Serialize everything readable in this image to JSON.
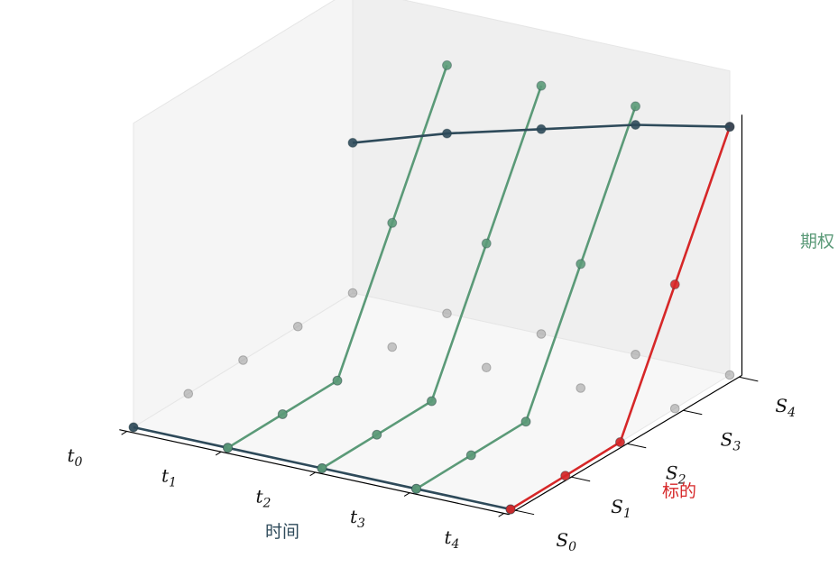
{
  "chart_data": {
    "type": "line3d",
    "title": "",
    "axes": {
      "x": {
        "label": "时间",
        "label_color": "#2e4a5a",
        "ticks": [
          {
            "base": "t",
            "sub": "0"
          },
          {
            "base": "t",
            "sub": "1"
          },
          {
            "base": "t",
            "sub": "2"
          },
          {
            "base": "t",
            "sub": "3"
          },
          {
            "base": "t",
            "sub": "4"
          }
        ]
      },
      "y": {
        "label": "标的",
        "label_color": "#d62728",
        "ticks": [
          {
            "base": "S",
            "sub": "0"
          },
          {
            "base": "S",
            "sub": "1"
          },
          {
            "base": "S",
            "sub": "2"
          },
          {
            "base": "S",
            "sub": "3"
          },
          {
            "base": "S",
            "sub": "4"
          }
        ]
      },
      "z": {
        "label": "期权",
        "label_color": "#5b9a78"
      }
    },
    "grid_points": {
      "t": [
        0,
        1,
        2,
        3,
        4
      ],
      "S": [
        0,
        1,
        2,
        3,
        4
      ],
      "z": 0,
      "color": "#999999"
    },
    "series": [
      {
        "kind": "time-path-at-S0",
        "color": "#2e4a5a",
        "points": [
          [
            0,
            0,
            0
          ],
          [
            1,
            0,
            0
          ],
          [
            2,
            0,
            0
          ],
          [
            3,
            0,
            0
          ],
          [
            4,
            0,
            0
          ]
        ]
      },
      {
        "kind": "underlying-path-at-t4",
        "color": "#d62728",
        "points": [
          [
            4,
            0,
            0
          ],
          [
            4,
            1,
            0
          ],
          [
            4,
            2,
            0
          ],
          [
            4,
            3,
            1
          ],
          [
            4,
            4,
            2
          ]
        ]
      },
      {
        "kind": "option-path",
        "color": "#5b9a78",
        "points": [
          [
            1,
            0,
            0
          ],
          [
            1,
            1,
            0
          ],
          [
            1,
            2,
            0
          ],
          [
            1,
            3,
            1
          ],
          [
            1,
            4,
            2
          ]
        ]
      },
      {
        "kind": "option-path",
        "color": "#5b9a78",
        "points": [
          [
            2,
            0,
            0
          ],
          [
            2,
            1,
            0
          ],
          [
            2,
            2,
            0
          ],
          [
            2,
            3,
            1
          ],
          [
            2,
            4,
            2
          ]
        ]
      },
      {
        "kind": "option-path",
        "color": "#5b9a78",
        "points": [
          [
            3,
            0,
            0
          ],
          [
            3,
            1,
            0
          ],
          [
            3,
            2,
            0
          ],
          [
            3,
            3,
            1
          ],
          [
            3,
            4,
            2
          ]
        ]
      },
      {
        "kind": "option-at-S4",
        "color": "#2e4a5a",
        "points": [
          [
            0,
            4,
            1.21
          ],
          [
            1,
            4,
            1.45
          ],
          [
            2,
            4,
            1.65
          ],
          [
            3,
            4,
            1.85
          ],
          [
            4,
            4,
            2
          ]
        ]
      }
    ],
    "grid": true
  }
}
